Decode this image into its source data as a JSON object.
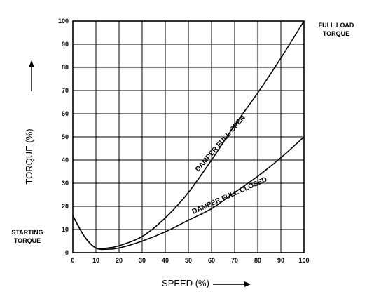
{
  "chart_data": {
    "type": "line",
    "title": "",
    "xlabel": "SPEED (%)",
    "ylabel": "TORQUE (%)",
    "xlim": [
      0,
      100
    ],
    "ylim": [
      0,
      100
    ],
    "grid": true,
    "x_ticks": [
      "0",
      "10",
      "20",
      "30",
      "40",
      "50",
      "60",
      "70",
      "80",
      "90",
      "100"
    ],
    "y_ticks": [
      "0",
      "10",
      "20",
      "30",
      "40",
      "50",
      "60",
      "70",
      "80",
      "90",
      "100"
    ],
    "annotations": {
      "starting_torque": [
        "STARTING",
        "TORQUE"
      ],
      "full_load_torque": [
        "FULL LOAD",
        "TORQUE"
      ]
    },
    "series": [
      {
        "name": "DAMPER FULL OPEN",
        "x": [
          0,
          5,
          10,
          15,
          20,
          30,
          40,
          50,
          60,
          70,
          80,
          90,
          100
        ],
        "y": [
          16,
          7,
          2,
          2,
          3,
          7,
          15,
          26,
          40,
          55,
          69,
          84,
          100
        ]
      },
      {
        "name": "DAMPER FULL CLOSED",
        "x": [
          0,
          5,
          10,
          15,
          20,
          30,
          40,
          50,
          60,
          70,
          80,
          90,
          100
        ],
        "y": [
          16,
          7,
          2,
          1.5,
          2,
          5,
          9,
          14,
          19,
          26,
          33,
          41,
          50
        ]
      }
    ]
  }
}
